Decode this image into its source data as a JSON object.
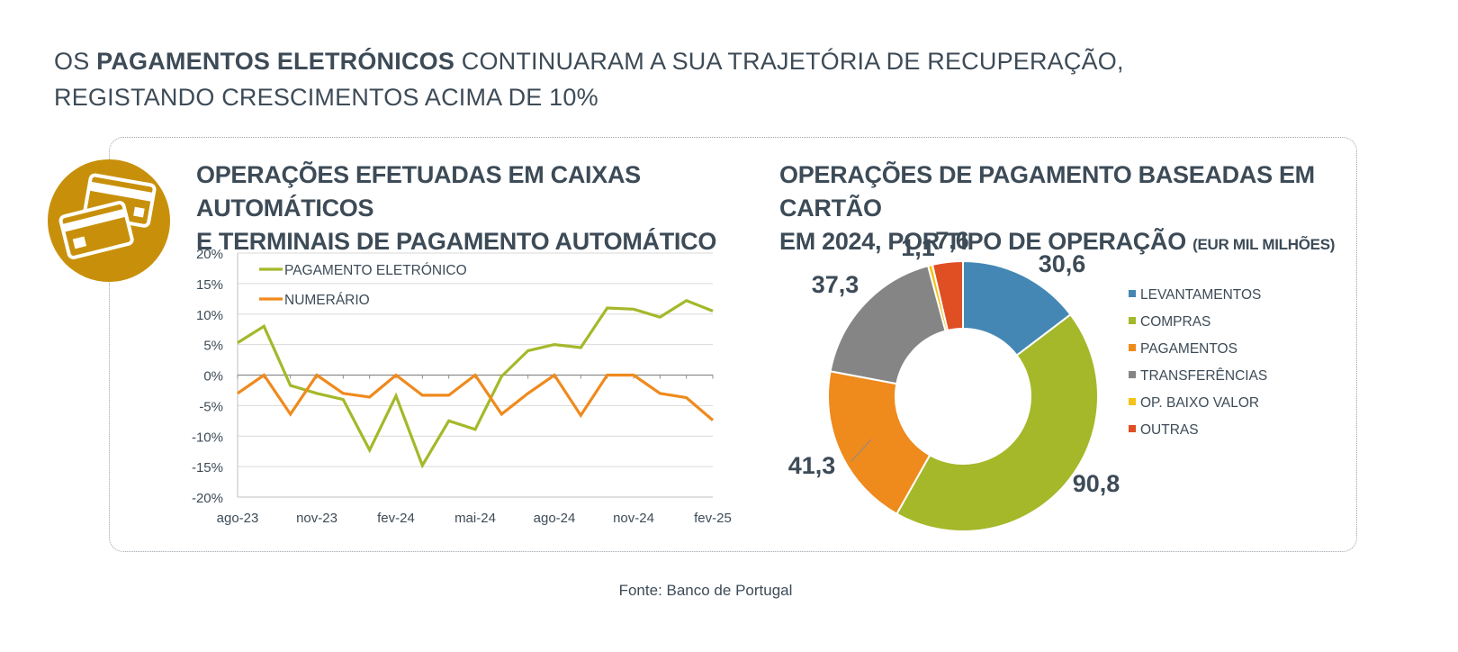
{
  "headline": {
    "prefix": "OS ",
    "bold": "PAGAMENTOS ELETRÓNICOS",
    "rest_line1": " CONTINUARAM A SUA TRAJETÓRIA DE RECUPERAÇÃO,",
    "line2": "REGISTANDO CRESCIMENTOS ACIMA DE 10%"
  },
  "icon": "credit-cards-icon",
  "colors": {
    "badge": "#c8900a",
    "text": "#3d4b57",
    "green": "#a5b82a",
    "orange": "#ef8a1d",
    "blue": "#4487b4",
    "gray": "#858585",
    "yellow": "#f2c318",
    "red": "#e04e24"
  },
  "line_chart_title": {
    "line1": "OPERAÇÕES EFETUADAS EM CAIXAS AUTOMÁTICOS",
    "line2": "E TERMINAIS DE PAGAMENTO AUTOMÁTICO"
  },
  "donut_chart_title": {
    "line1": "OPERAÇÕES DE PAGAMENTO BASEADAS EM CARTÃO",
    "line2": "EM 2024, POR TIPO DE OPERAÇÃO",
    "unit": "(EUR MIL MILHÕES)"
  },
  "source": "Fonte: Banco de Portugal",
  "chart_data": [
    {
      "type": "line",
      "x_tick_labels": [
        "ago-23",
        "nov-23",
        "fev-24",
        "mai-24",
        "ago-24",
        "nov-24",
        "fev-25"
      ],
      "y_tick_labels": [
        "20%",
        "15%",
        "10%",
        "5%",
        "0%",
        "-5%",
        "-10%",
        "-15%",
        "-20%"
      ],
      "ylim": [
        -20,
        20
      ],
      "grid": true,
      "legend_position": "top-left",
      "x": [
        "ago-23",
        "set-23",
        "out-23",
        "nov-23",
        "dez-23",
        "jan-24",
        "fev-24",
        "mar-24",
        "abr-24",
        "mai-24",
        "jun-24",
        "jul-24",
        "ago-24",
        "set-24",
        "out-24",
        "nov-24",
        "dez-24",
        "jan-25",
        "fev-25"
      ],
      "series": [
        {
          "name": "PAGAMENTO ELETRÓNICO",
          "color": "#a5b82a",
          "values": [
            5.3,
            8.0,
            -1.7,
            -3.0,
            -4.0,
            -12.3,
            -3.4,
            -14.8,
            -7.5,
            -8.9,
            -0.2,
            4.0,
            5.0,
            4.5,
            11.0,
            10.8,
            9.5,
            12.2,
            10.5
          ]
        },
        {
          "name": "NUMERÁRIO",
          "color": "#ef8a1d",
          "values": [
            -3.0,
            0.0,
            -6.4,
            0.0,
            -3.0,
            -3.6,
            0.0,
            -3.3,
            -3.3,
            0.0,
            -6.4,
            -3.0,
            0.0,
            -6.6,
            0.0,
            0.0,
            -3.0,
            -3.7,
            -7.4
          ]
        }
      ]
    },
    {
      "type": "pie",
      "subtype": "donut",
      "legend_position": "right",
      "categories": [
        "LEVANTAMENTOS",
        "COMPRAS",
        "PAGAMENTOS",
        "TRANSFERÊNCIAS",
        "OP. BAIXO VALOR",
        "OUTRAS"
      ],
      "values": [
        30.6,
        90.8,
        41.3,
        37.3,
        1.1,
        7.6
      ],
      "labels": [
        "30,6",
        "90,8",
        "41,3",
        "37,3",
        "1,1",
        "7,6"
      ],
      "colors": [
        "#4487b4",
        "#a5b82a",
        "#ef8a1d",
        "#858585",
        "#f2c318",
        "#e04e24"
      ]
    }
  ]
}
